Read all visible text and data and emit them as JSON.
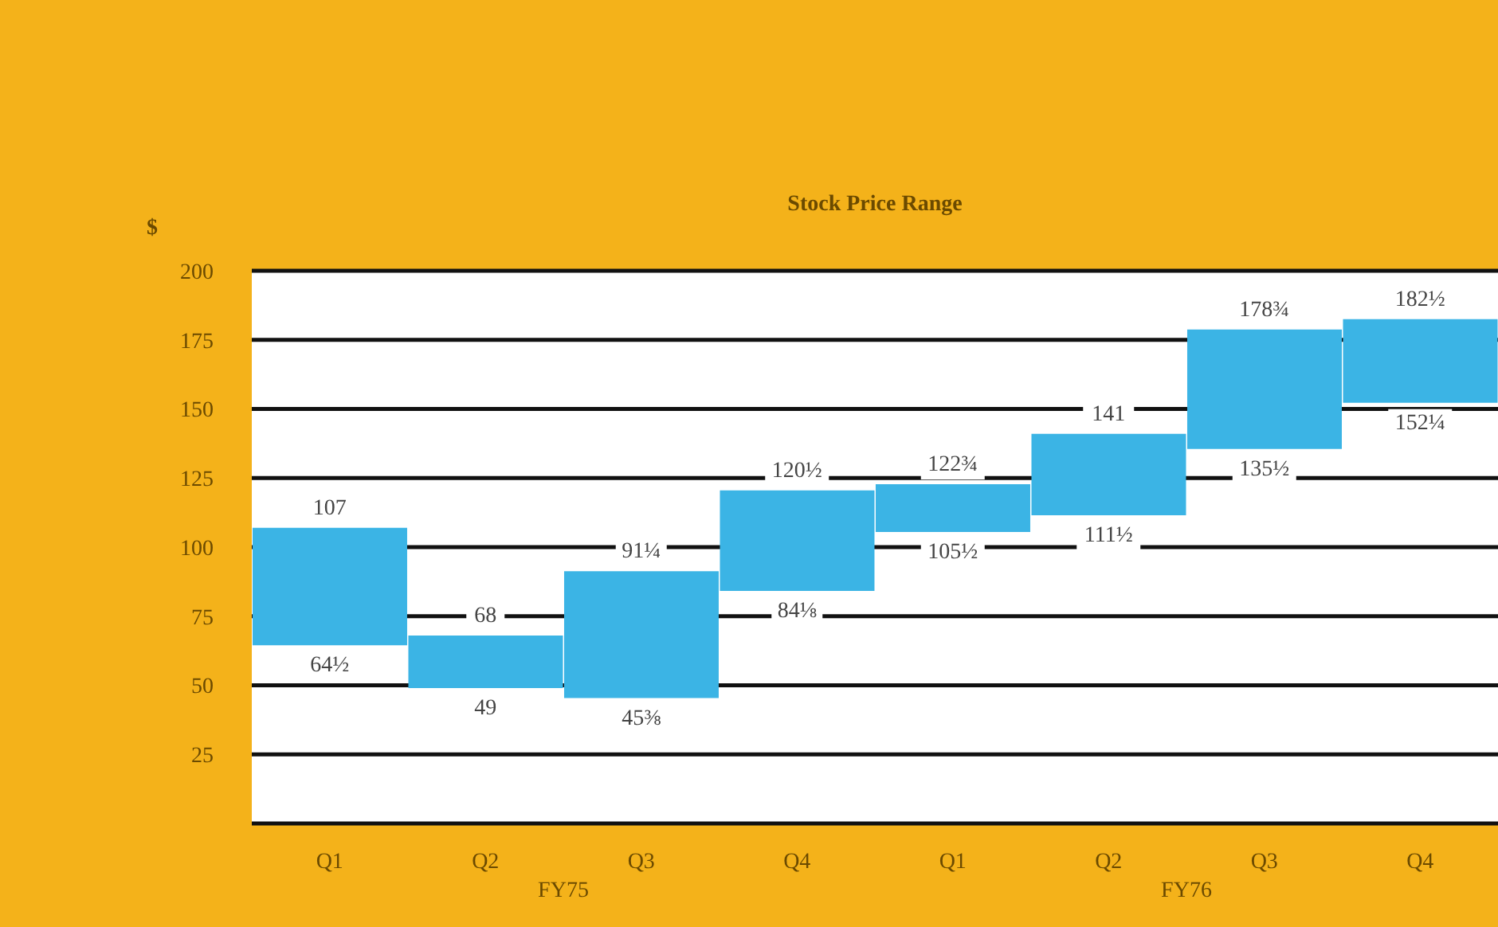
{
  "chart_data": {
    "type": "bar",
    "title": "Stock Price Range",
    "ylabel": "$",
    "categories": [
      "Q1",
      "Q2",
      "Q3",
      "Q4",
      "Q1",
      "Q2",
      "Q3",
      "Q4"
    ],
    "base": [
      64.5,
      49,
      45.375,
      84.125,
      105.5,
      111.5,
      135.5,
      152.25
    ],
    "values": [
      42.5,
      19,
      45.875,
      36.375,
      17.25,
      29.5,
      43.25,
      30.25
    ],
    "color": "#3bb4e5",
    "ylim": [
      0,
      200
    ],
    "yticks": [
      {
        "value": 0,
        "label": null
      },
      25,
      50,
      75,
      100,
      125,
      150,
      175,
      200
    ],
    "grid": "y",
    "annotations": [
      "107",
      "64½",
      "68",
      "49",
      "91¼",
      "45⅜",
      "120½",
      "84⅛",
      "122¾",
      "105½",
      "141",
      "111½",
      "178¾",
      "135½",
      "182½",
      "152¼",
      "FY75",
      "FY76"
    ]
  }
}
